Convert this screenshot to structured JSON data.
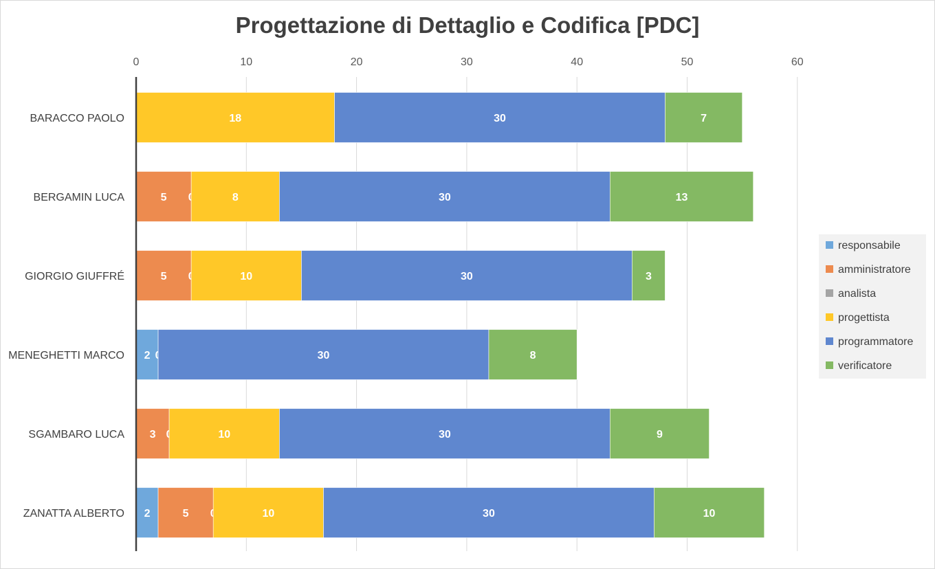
{
  "chart_data": {
    "type": "bar",
    "orientation": "horizontal",
    "stacked": true,
    "title": "Progettazione di Dettaglio e Codifica [PDC]",
    "xlim": [
      0,
      60
    ],
    "x_ticks": [
      0,
      10,
      20,
      30,
      40,
      50,
      60
    ],
    "x_axis_position": "top",
    "grid": true,
    "legend_position": "right",
    "categories": [
      "BARACCO PAOLO",
      "BERGAMIN LUCA",
      "GIORGIO GIUFFRÉ",
      "MENEGHETTI MARCO",
      "SGAMBARO LUCA",
      "ZANATTA ALBERTO"
    ],
    "series": [
      {
        "name": "responsabile",
        "color": "#6fa8dc",
        "values": [
          0,
          0,
          0,
          2,
          0,
          2
        ],
        "labels": [
          "0",
          "0",
          "0",
          "2",
          "0",
          "2"
        ]
      },
      {
        "name": "amministratore",
        "color": "#ed8b4f",
        "values": [
          0,
          5,
          5,
          0,
          3,
          5
        ],
        "labels": [
          "",
          "5",
          "5",
          "",
          "3",
          "5"
        ]
      },
      {
        "name": "analista",
        "color": "#a5a5a5",
        "values": [
          0,
          0,
          0,
          0,
          0,
          0
        ],
        "labels": [
          "",
          "0",
          "0",
          "0",
          "0",
          "0"
        ]
      },
      {
        "name": "progettista",
        "color": "#ffc828",
        "values": [
          18,
          8,
          10,
          0,
          10,
          10
        ],
        "labels": [
          "18",
          "8",
          "10",
          "",
          "10",
          "10"
        ]
      },
      {
        "name": "programmatore",
        "color": "#5f87cf",
        "values": [
          30,
          30,
          30,
          30,
          30,
          30
        ],
        "labels": [
          "30",
          "30",
          "30",
          "30",
          "30",
          "30"
        ]
      },
      {
        "name": "verificatore",
        "color": "#84b963",
        "values": [
          7,
          13,
          3,
          8,
          9,
          10
        ],
        "labels": [
          "7",
          "13",
          "3",
          "8",
          "9",
          "10"
        ]
      }
    ]
  }
}
